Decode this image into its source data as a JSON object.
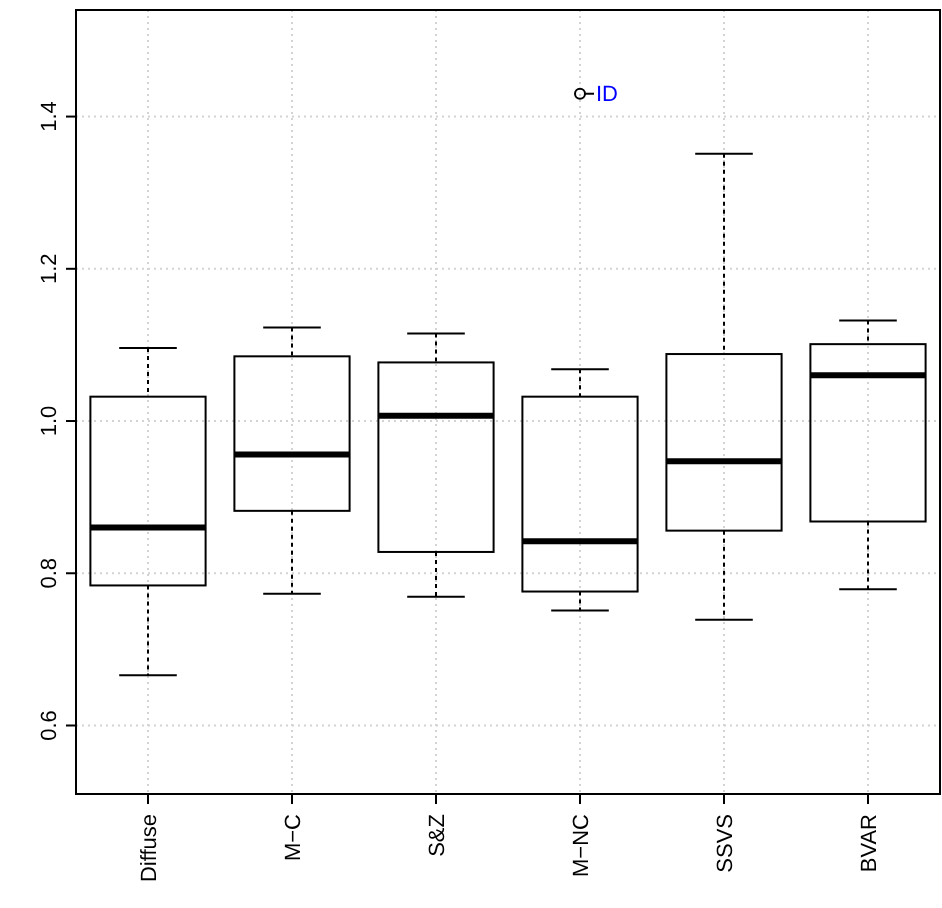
{
  "chart_data": {
    "type": "box",
    "categories": [
      "Diffuse",
      "M−C",
      "S&Z",
      "M−NC",
      "SSVS",
      "BVAR"
    ],
    "boxes": [
      {
        "low": 0.666,
        "q1": 0.784,
        "median": 0.86,
        "q3": 1.032,
        "high": 1.096
      },
      {
        "low": 0.773,
        "q1": 0.882,
        "median": 0.956,
        "q3": 1.085,
        "high": 1.123
      },
      {
        "low": 0.769,
        "q1": 0.828,
        "median": 1.007,
        "q3": 1.077,
        "high": 1.115
      },
      {
        "low": 0.751,
        "q1": 0.776,
        "median": 0.842,
        "q3": 1.032,
        "high": 1.068,
        "outliers": [
          1.43
        ]
      },
      {
        "low": 0.739,
        "q1": 0.856,
        "median": 0.947,
        "q3": 1.088,
        "high": 1.351
      },
      {
        "low": 0.779,
        "q1": 0.868,
        "median": 1.06,
        "q3": 1.101,
        "high": 1.132
      }
    ],
    "ylim": [
      0.51,
      1.54
    ],
    "yticks": [
      {
        "value": 0.6,
        "label": "0.6"
      },
      {
        "value": 0.8,
        "label": "0.8"
      },
      {
        "value": 1.0,
        "label": "1.0"
      },
      {
        "value": 1.2,
        "label": "1.2"
      },
      {
        "value": 1.4,
        "label": "1.4"
      }
    ],
    "grid": true,
    "annotations": [
      "ID"
    ]
  }
}
